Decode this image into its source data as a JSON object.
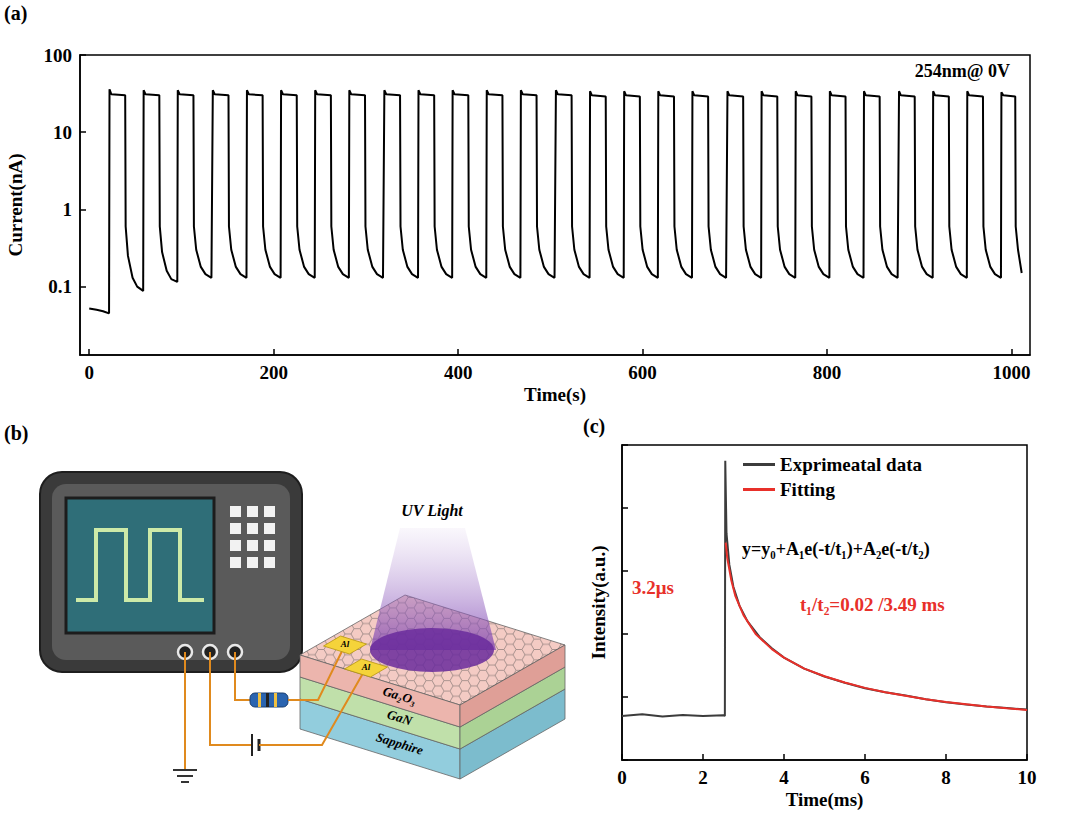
{
  "chart_data": [
    {
      "type": "line",
      "panel_label": "(a)",
      "annotations": [
        "254nm@ 0V"
      ],
      "x_label": "Time(s)",
      "y_label": "Current(nA)",
      "color": "#000000",
      "x": [
        0,
        8,
        15,
        21.5,
        22,
        24,
        39,
        39.5,
        42,
        47,
        52,
        58.5,
        59,
        61,
        76,
        76.5,
        79,
        84,
        89,
        95.5,
        96,
        98,
        113,
        113.5,
        116,
        121,
        126,
        132.5,
        134,
        136,
        151,
        151.5,
        154,
        159,
        164,
        170.5,
        171,
        173,
        188,
        188.5,
        191,
        196,
        201,
        207.5,
        208,
        210,
        225,
        225.5,
        228,
        233,
        238,
        244.5,
        245,
        247,
        262,
        262.5,
        265,
        270,
        275,
        281.5,
        282,
        284,
        299,
        299.5,
        302,
        307,
        312,
        318.5,
        320,
        322,
        337,
        337.5,
        340,
        345,
        350,
        356.5,
        357,
        359,
        374,
        374.5,
        377,
        382,
        387,
        393.5,
        394,
        396,
        411,
        411.5,
        414,
        419,
        424,
        430.5,
        431,
        433,
        448,
        448.5,
        451,
        456,
        461,
        467.5,
        468,
        470,
        485,
        485.5,
        488,
        493,
        498,
        504.5,
        506,
        508,
        523,
        523.5,
        526,
        531,
        536,
        542.5,
        543,
        545,
        560,
        560.5,
        563,
        568,
        573,
        579.5,
        580,
        582,
        597,
        597.5,
        600,
        605,
        610,
        616.5,
        617,
        619,
        634,
        634.5,
        637,
        642,
        647,
        653.5,
        654,
        656,
        671,
        671.5,
        674,
        679,
        684,
        690.5,
        692,
        694,
        709,
        709.5,
        712,
        717,
        722,
        728.5,
        729,
        731,
        746,
        746.5,
        749,
        754,
        759,
        765.5,
        766,
        768,
        783,
        783.5,
        786,
        791,
        796,
        802.5,
        803,
        805,
        820,
        820.5,
        823,
        828,
        833,
        839.5,
        840,
        842,
        857,
        857.5,
        860,
        865,
        870,
        876.5,
        878,
        880,
        895,
        895.5,
        898,
        903,
        908,
        914.5,
        915,
        917,
        932,
        932.5,
        935,
        940,
        945,
        951.5,
        952,
        954,
        969,
        969.5,
        972,
        977,
        982,
        988.5,
        989,
        991,
        1004,
        1004.5,
        1007,
        1011
      ],
      "values": [
        0.052,
        0.05,
        0.048,
        0.045,
        36,
        31,
        30,
        0.6,
        0.25,
        0.13,
        0.1,
        0.088,
        35,
        31,
        30,
        0.6,
        0.28,
        0.16,
        0.125,
        0.115,
        35,
        31,
        30,
        0.6,
        0.3,
        0.18,
        0.145,
        0.13,
        35,
        31,
        30,
        0.6,
        0.3,
        0.18,
        0.145,
        0.13,
        35,
        31,
        30,
        0.6,
        0.3,
        0.18,
        0.145,
        0.13,
        35,
        31,
        30,
        0.6,
        0.3,
        0.18,
        0.145,
        0.13,
        35,
        31,
        30,
        0.6,
        0.3,
        0.18,
        0.145,
        0.13,
        35,
        31,
        30,
        0.6,
        0.3,
        0.18,
        0.145,
        0.13,
        35,
        31,
        30,
        0.6,
        0.3,
        0.18,
        0.145,
        0.13,
        35,
        31,
        30,
        0.6,
        0.3,
        0.18,
        0.145,
        0.13,
        35,
        31,
        30,
        0.6,
        0.3,
        0.18,
        0.145,
        0.13,
        35,
        31,
        30,
        0.6,
        0.3,
        0.18,
        0.145,
        0.13,
        35,
        31,
        30,
        0.6,
        0.3,
        0.18,
        0.145,
        0.13,
        35,
        31,
        30,
        0.6,
        0.3,
        0.18,
        0.145,
        0.13,
        34,
        30,
        29,
        0.6,
        0.3,
        0.18,
        0.145,
        0.13,
        34,
        30,
        29,
        0.6,
        0.3,
        0.18,
        0.145,
        0.13,
        34,
        30,
        29,
        0.6,
        0.3,
        0.18,
        0.145,
        0.13,
        34,
        30,
        29,
        0.6,
        0.3,
        0.18,
        0.145,
        0.13,
        34,
        30,
        29,
        0.6,
        0.3,
        0.18,
        0.145,
        0.13,
        34,
        30,
        29,
        0.6,
        0.3,
        0.18,
        0.145,
        0.13,
        34,
        30,
        29,
        0.6,
        0.3,
        0.18,
        0.145,
        0.13,
        34,
        30,
        29,
        0.6,
        0.3,
        0.18,
        0.145,
        0.13,
        34,
        30,
        29,
        0.6,
        0.3,
        0.18,
        0.145,
        0.13,
        34,
        30,
        29,
        0.6,
        0.3,
        0.18,
        0.145,
        0.13,
        34,
        30,
        29,
        0.6,
        0.3,
        0.18,
        0.145,
        0.13,
        34,
        30,
        29,
        0.6,
        0.3,
        0.18,
        0.145,
        0.13,
        33,
        30,
        29,
        0.6,
        0.3,
        0.15
      ],
      "xlim": [
        -10,
        1020
      ],
      "xticks": [
        0,
        200,
        400,
        600,
        800,
        1000
      ],
      "ylim": [
        0.013,
        100
      ],
      "yticks": [
        0.1,
        1,
        10,
        100
      ],
      "log": "y",
      "grid": false
    },
    {
      "type": "line",
      "panel_label": "(c)",
      "annotations": [
        "3.2μs",
        "y=y₀+A₁e(-t/t₁)+A₂e(-t/t₂)",
        "t₁/t₂=0.02 /3.49 ms"
      ],
      "x_label": "Time(ms)",
      "y_label": "Intensity(a.u.)",
      "series": [
        {
          "name": "Exprimeatal data",
          "color": "#3c3c3c",
          "x": [
            0,
            0.5,
            1,
            1.5,
            2,
            2.5,
            2.54,
            2.55,
            2.58,
            2.65,
            2.75,
            2.9,
            3.1,
            3.4,
            3.7,
            4,
            4.5,
            5,
            5.5,
            6,
            6.5,
            7,
            7.5,
            8,
            8.5,
            9,
            9.5,
            10
          ],
          "values": [
            0.14,
            0.145,
            0.138,
            0.143,
            0.14,
            0.142,
            0.14,
            0.95,
            0.72,
            0.62,
            0.55,
            0.49,
            0.44,
            0.39,
            0.355,
            0.325,
            0.29,
            0.265,
            0.245,
            0.228,
            0.215,
            0.205,
            0.193,
            0.183,
            0.176,
            0.17,
            0.165,
            0.16
          ]
        },
        {
          "name": "Fitting",
          "color": "#e8302a",
          "x": [
            2.56,
            2.6,
            2.7,
            2.8,
            3,
            3.3,
            3.7,
            4,
            4.5,
            5,
            5.5,
            6,
            6.5,
            7,
            7.5,
            8,
            8.5,
            9,
            9.5,
            10
          ],
          "values": [
            0.69,
            0.64,
            0.57,
            0.52,
            0.46,
            0.4,
            0.352,
            0.325,
            0.29,
            0.266,
            0.246,
            0.229,
            0.215,
            0.204,
            0.193,
            0.184,
            0.177,
            0.17,
            0.164,
            0.159
          ]
        }
      ],
      "xlim": [
        0,
        10
      ],
      "xticks": [
        0,
        2,
        4,
        6,
        8,
        10
      ],
      "ylim": [
        0,
        1
      ],
      "yticks": [
        0,
        0.2,
        0.4,
        0.6,
        0.8,
        1
      ],
      "tick_labels": "x",
      "legend": "upper right",
      "grid": false
    }
  ],
  "diagram": {
    "panel_label": "(b)",
    "light": "UV Light",
    "electrodes": [
      "Al",
      "Al"
    ],
    "layers": [
      "Ga₂O₃",
      "GaN",
      "Sapphire"
    ]
  }
}
